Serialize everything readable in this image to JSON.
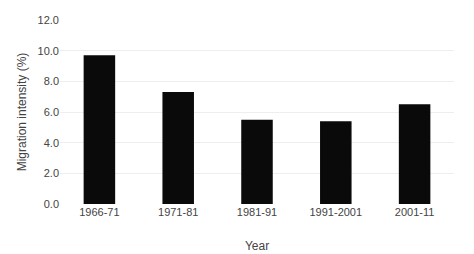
{
  "chart_data": {
    "type": "bar",
    "xlabel": "Year",
    "ylabel": "Migration intensity (%)",
    "categories": [
      "1966-71",
      "1971-81",
      "1981-91",
      "1991-2001",
      "2001-11"
    ],
    "values": [
      9.7,
      7.3,
      5.5,
      5.4,
      6.5
    ],
    "color": "#0a0a0a",
    "ylim": [
      0,
      12.0
    ],
    "yticks": [
      {
        "value": 0,
        "label": "0.0"
      },
      {
        "value": 2,
        "label": "2.0"
      },
      {
        "value": 4,
        "label": "4.0"
      },
      {
        "value": 6,
        "label": "6.0"
      },
      {
        "value": 8,
        "label": "8.0"
      },
      {
        "value": 10,
        "label": "10.0"
      },
      {
        "value": 12,
        "label": "12.0"
      }
    ],
    "grid": true
  }
}
